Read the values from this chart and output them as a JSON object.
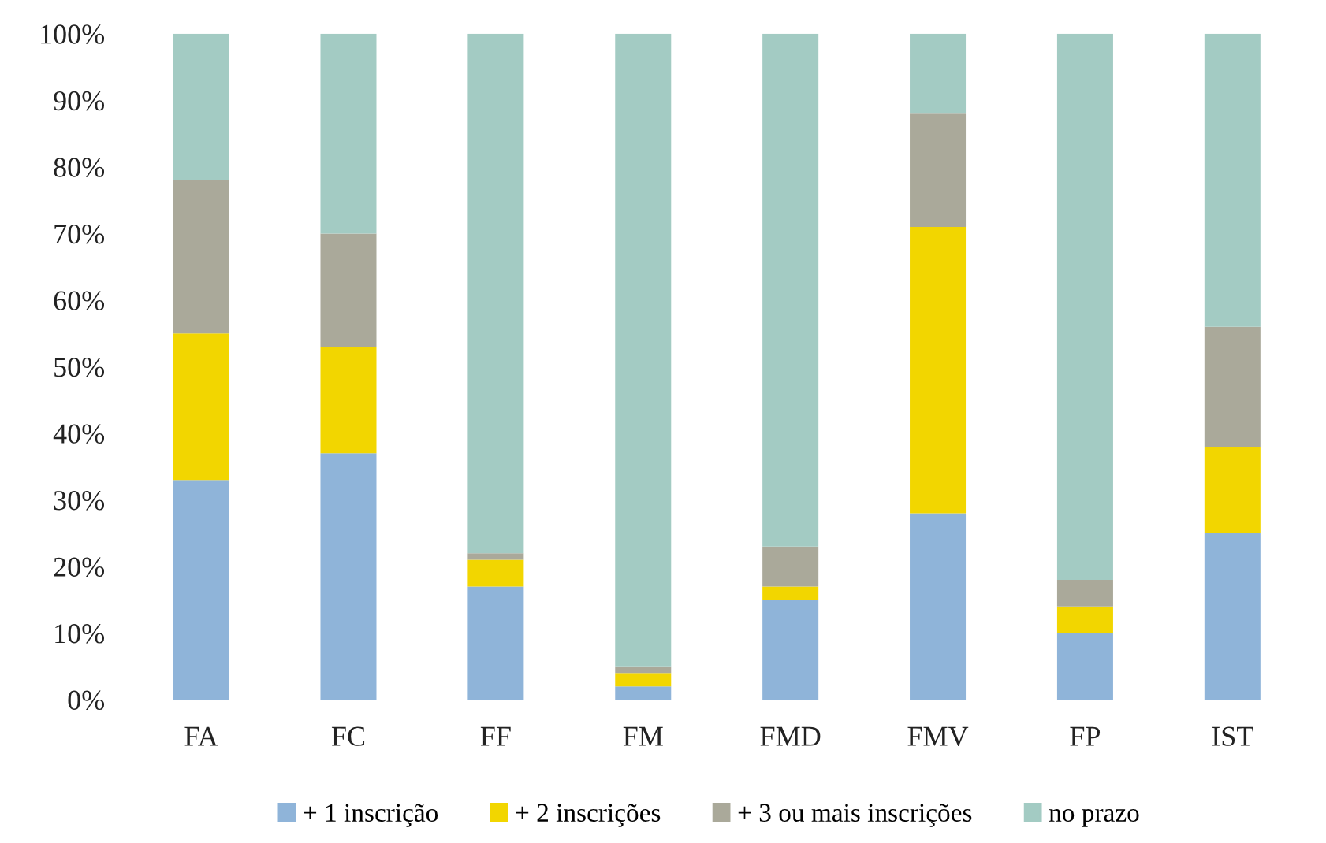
{
  "chart_data": {
    "type": "bar",
    "stacked": true,
    "categories": [
      "FA",
      "FC",
      "FF",
      "FM",
      "FMD",
      "FMV",
      "FP",
      "IST"
    ],
    "series": [
      {
        "name": "+ 1 inscrição",
        "color": "#8fb4d9",
        "values": [
          33,
          37,
          17,
          2,
          15,
          28,
          10,
          25
        ]
      },
      {
        "name": "+ 2 inscrições",
        "color": "#f2d600",
        "values": [
          22,
          16,
          4,
          2,
          2,
          43,
          4,
          13
        ]
      },
      {
        "name": "+ 3 ou mais inscrições",
        "color": "#aaa99a",
        "values": [
          23,
          17,
          1,
          1,
          6,
          17,
          4,
          18
        ]
      },
      {
        "name": "no prazo",
        "color": "#a3cbc3",
        "values": [
          22,
          30,
          78,
          95,
          77,
          12,
          82,
          44
        ]
      }
    ],
    "ylim": [
      0,
      100
    ],
    "yticks": [
      {
        "value": 0,
        "label": "0%"
      },
      {
        "value": 10,
        "label": "10%"
      },
      {
        "value": 20,
        "label": "20%"
      },
      {
        "value": 30,
        "label": "30%"
      },
      {
        "value": 40,
        "label": "40%"
      },
      {
        "value": 50,
        "label": "50%"
      },
      {
        "value": 60,
        "label": "60%"
      },
      {
        "value": 70,
        "label": "70%"
      },
      {
        "value": 80,
        "label": "80%"
      },
      {
        "value": 90,
        "label": "90%"
      },
      {
        "value": 100,
        "label": "100%"
      }
    ],
    "legend": "bottom"
  }
}
